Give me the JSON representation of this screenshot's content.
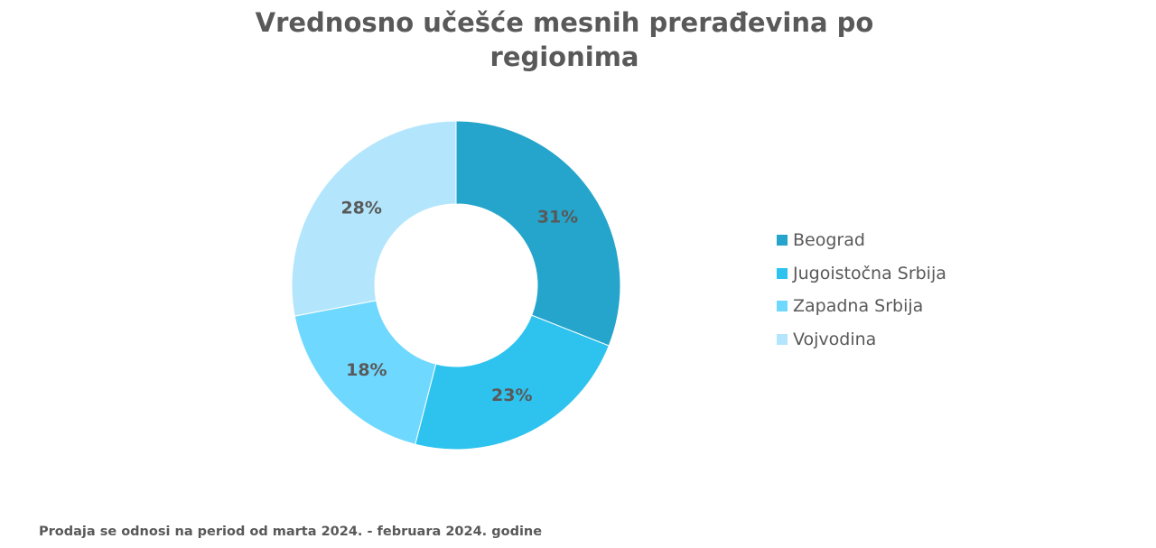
{
  "chart_data": {
    "type": "pie",
    "variant": "donut",
    "title": "Vrednosno učešće mesnih prerađevina po regionima",
    "categories": [
      "Beograd",
      "Jugoistočna Srbija",
      "Zapadna Srbija",
      "Vojvodina"
    ],
    "values": [
      31,
      23,
      18,
      28
    ],
    "labels": [
      "31%",
      "23%",
      "18%",
      "28%"
    ],
    "colors": [
      "#25A5CB",
      "#2DC3EE",
      "#6FD8FF",
      "#B3E6FC"
    ],
    "legend_position": "right"
  },
  "footer": "Prodaja se odnosi na period od marta 2024.  - februara 2024. godine"
}
